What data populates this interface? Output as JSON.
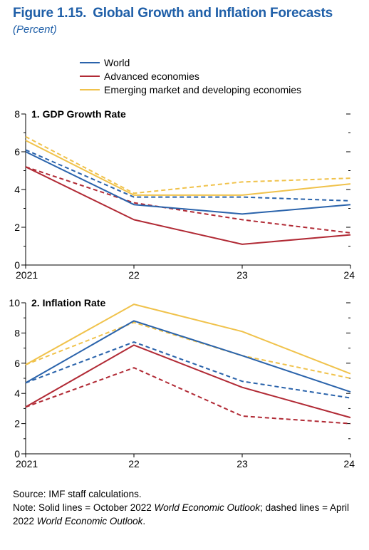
{
  "figure": {
    "label": "Figure 1.15.",
    "title": "Global Growth and Inflation Forecasts",
    "subtitle": "(Percent)"
  },
  "legend": [
    {
      "name": "World",
      "color": "#2a63ab"
    },
    {
      "name": "Advanced economies",
      "color": "#b12a35"
    },
    {
      "name": "Emerging market and developing economies",
      "color": "#f0c24b"
    }
  ],
  "source": "Source: IMF staff calculations.",
  "note": {
    "prefix": "Note: Solid lines = October 2022 ",
    "italic1": "World Economic Outlook",
    "middle": "; dashed lines = April 2022 ",
    "italic2": "World Economic Outlook",
    "suffix": "."
  },
  "chart_data": [
    {
      "type": "line",
      "title": "1. GDP Growth Rate",
      "categories": [
        "2021",
        "22",
        "23",
        "24"
      ],
      "ylim": [
        0,
        8
      ],
      "yticks": [
        0,
        2,
        4,
        6,
        8
      ],
      "series": [
        {
          "name": "World",
          "style": "solid",
          "color": "#2a63ab",
          "values": [
            6.0,
            3.2,
            2.7,
            3.2
          ]
        },
        {
          "name": "Advanced economies",
          "style": "solid",
          "color": "#b12a35",
          "values": [
            5.2,
            2.4,
            1.1,
            1.6
          ]
        },
        {
          "name": "Emerging market and developing economies",
          "style": "solid",
          "color": "#f0c24b",
          "values": [
            6.6,
            3.7,
            3.7,
            4.3
          ]
        },
        {
          "name": "World",
          "style": "dashed",
          "color": "#2a63ab",
          "values": [
            6.1,
            3.6,
            3.6,
            3.4
          ]
        },
        {
          "name": "Advanced economies",
          "style": "dashed",
          "color": "#b12a35",
          "values": [
            5.2,
            3.3,
            2.4,
            1.7
          ]
        },
        {
          "name": "Emerging market and developing economies",
          "style": "dashed",
          "color": "#f0c24b",
          "values": [
            6.8,
            3.8,
            4.4,
            4.6
          ]
        }
      ]
    },
    {
      "type": "line",
      "title": "2. Inflation Rate",
      "categories": [
        "2021",
        "22",
        "23",
        "24"
      ],
      "ylim": [
        0,
        10
      ],
      "yticks": [
        0,
        2,
        4,
        6,
        8,
        10
      ],
      "series": [
        {
          "name": "World",
          "style": "solid",
          "color": "#2a63ab",
          "values": [
            4.7,
            8.8,
            6.5,
            4.1
          ]
        },
        {
          "name": "Advanced economies",
          "style": "solid",
          "color": "#b12a35",
          "values": [
            3.1,
            7.2,
            4.4,
            2.4
          ]
        },
        {
          "name": "Emerging market and developing economies",
          "style": "solid",
          "color": "#f0c24b",
          "values": [
            5.9,
            9.9,
            8.1,
            5.3
          ]
        },
        {
          "name": "World",
          "style": "dashed",
          "color": "#2a63ab",
          "values": [
            4.7,
            7.4,
            4.8,
            3.7
          ]
        },
        {
          "name": "Advanced economies",
          "style": "dashed",
          "color": "#b12a35",
          "values": [
            3.1,
            5.7,
            2.5,
            2.0
          ]
        },
        {
          "name": "Emerging market and developing economies",
          "style": "dashed",
          "color": "#f0c24b",
          "values": [
            5.9,
            8.7,
            6.5,
            5.0
          ]
        }
      ]
    }
  ]
}
